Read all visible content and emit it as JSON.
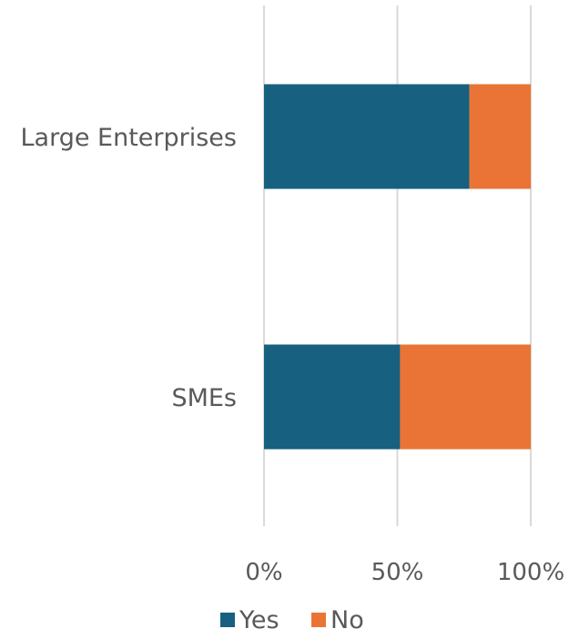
{
  "chart_data": {
    "type": "bar",
    "orientation": "horizontal",
    "stacked": true,
    "categories": [
      "Large Enterprises",
      "SMEs"
    ],
    "series": [
      {
        "name": "Yes",
        "values": [
          77,
          51
        ]
      },
      {
        "name": "No",
        "values": [
          23,
          49
        ]
      }
    ],
    "x_ticks": [
      "0%",
      "50%",
      "100%"
    ],
    "xlim": [
      0,
      100
    ],
    "grid": "vertical",
    "legend": "bottom",
    "title": "",
    "xlabel": "",
    "ylabel": ""
  },
  "colors": {
    "Yes": "#17607f",
    "No": "#ea7435",
    "gridline": "#d9d9d9",
    "text": "#595959"
  }
}
